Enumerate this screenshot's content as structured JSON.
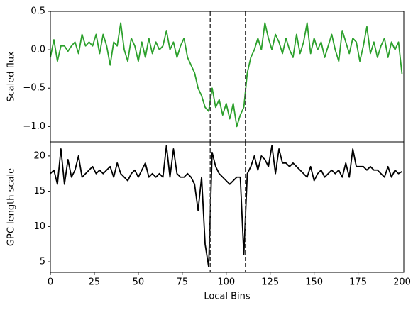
{
  "chart_data": [
    {
      "type": "line",
      "ylabel": "Scaled flux",
      "xlim": [
        0,
        201
      ],
      "ylim": [
        -1.2,
        0.5
      ],
      "yticks": [
        {
          "value": -1,
          "label": "−1.0"
        },
        {
          "value": -0.5,
          "label": "−0.5"
        },
        {
          "value": 0,
          "label": "0.0"
        },
        0.5
      ],
      "vlines": [
        91,
        111
      ],
      "vline_color": "#444444",
      "x": [
        0,
        2,
        4,
        6,
        8,
        10,
        12,
        14,
        16,
        18,
        20,
        22,
        24,
        26,
        28,
        30,
        32,
        34,
        36,
        38,
        40,
        42,
        44,
        46,
        48,
        50,
        52,
        54,
        56,
        58,
        60,
        62,
        64,
        66,
        68,
        70,
        72,
        74,
        76,
        78,
        80,
        82,
        84,
        86,
        88,
        90,
        92,
        94,
        96,
        98,
        100,
        102,
        104,
        106,
        108,
        110,
        112,
        114,
        116,
        118,
        120,
        122,
        124,
        126,
        128,
        130,
        132,
        134,
        136,
        138,
        140,
        142,
        144,
        146,
        148,
        150,
        152,
        154,
        156,
        158,
        160,
        162,
        164,
        166,
        168,
        170,
        172,
        174,
        176,
        178,
        180,
        182,
        184,
        186,
        188,
        190,
        192,
        194,
        196,
        198,
        200
      ],
      "series": [
        {
          "color": "#2ca02c",
          "values": [
            -0.1,
            0.13,
            -0.15,
            0.05,
            0.05,
            -0.02,
            0.05,
            0.1,
            -0.05,
            0.2,
            0.05,
            0.1,
            0.05,
            0.2,
            -0.05,
            0.2,
            0.05,
            -0.2,
            0.1,
            0.05,
            0.35,
            0.0,
            -0.15,
            0.15,
            0.05,
            -0.15,
            0.1,
            -0.1,
            0.15,
            -0.05,
            0.1,
            0.0,
            0.05,
            0.25,
            0.0,
            0.1,
            -0.1,
            0.05,
            0.15,
            -0.1,
            -0.2,
            -0.3,
            -0.5,
            -0.6,
            -0.75,
            -0.8,
            -0.5,
            -0.75,
            -0.65,
            -0.85,
            -0.7,
            -0.9,
            -0.7,
            -1.0,
            -0.85,
            -0.75,
            -0.3,
            -0.1,
            0.0,
            0.15,
            0.0,
            0.35,
            0.15,
            0.0,
            0.2,
            0.1,
            -0.05,
            0.15,
            0.0,
            -0.1,
            0.2,
            -0.05,
            0.1,
            0.35,
            -0.05,
            0.15,
            0.0,
            0.1,
            -0.1,
            0.05,
            0.2,
            0.0,
            -0.15,
            0.25,
            0.1,
            -0.05,
            0.15,
            0.1,
            -0.15,
            0.05,
            0.3,
            -0.05,
            0.1,
            -0.1,
            0.05,
            0.15,
            -0.1,
            0.1,
            0.0,
            0.1,
            -0.32
          ]
        }
      ]
    },
    {
      "type": "line",
      "ylabel": "GPC length scale",
      "xlabel": "Local Bins",
      "xlim": [
        0,
        201
      ],
      "ylim": [
        3.5,
        22
      ],
      "xticks": [
        0,
        25,
        50,
        75,
        100,
        125,
        150,
        175,
        200
      ],
      "yticks": [
        5,
        10,
        15,
        20
      ],
      "vlines": [
        91,
        111
      ],
      "vline_color": "#444444",
      "x": [
        0,
        2,
        4,
        6,
        8,
        10,
        12,
        14,
        16,
        18,
        20,
        22,
        24,
        26,
        28,
        30,
        32,
        34,
        36,
        38,
        40,
        42,
        44,
        46,
        48,
        50,
        52,
        54,
        56,
        58,
        60,
        62,
        64,
        66,
        68,
        70,
        72,
        74,
        76,
        78,
        80,
        82,
        84,
        86,
        88,
        90,
        92,
        94,
        96,
        98,
        100,
        102,
        104,
        106,
        108,
        110,
        112,
        114,
        116,
        118,
        120,
        122,
        124,
        126,
        128,
        130,
        132,
        134,
        136,
        138,
        140,
        142,
        144,
        146,
        148,
        150,
        152,
        154,
        156,
        158,
        160,
        162,
        164,
        166,
        168,
        170,
        172,
        174,
        176,
        178,
        180,
        182,
        184,
        186,
        188,
        190,
        192,
        194,
        196,
        198,
        200
      ],
      "series": [
        {
          "color": "#000000",
          "values": [
            17.5,
            18,
            16,
            21,
            16,
            19.5,
            17,
            18,
            20,
            17,
            17.5,
            18,
            18.5,
            17.5,
            18,
            17.5,
            18,
            18.5,
            17,
            19,
            17.5,
            17,
            16.5,
            17.5,
            18,
            17,
            18,
            19,
            17,
            17.5,
            17,
            17.5,
            17,
            21.5,
            17,
            21,
            17.5,
            17,
            17,
            17.5,
            17,
            16,
            12.3,
            17,
            7.5,
            4.3,
            20.5,
            18.5,
            17.5,
            17,
            16.5,
            16,
            16.5,
            17,
            17,
            6,
            17.5,
            18.5,
            20,
            18,
            20,
            19.5,
            18.5,
            21.5,
            17.5,
            21,
            19,
            19,
            18.5,
            19,
            18.5,
            18,
            17.5,
            17,
            18.5,
            16.5,
            17.5,
            18,
            17,
            17.5,
            18,
            17.5,
            18,
            17,
            19,
            17,
            21,
            18.5,
            18.5,
            18.5,
            18,
            18.5,
            18,
            18,
            17.5,
            17,
            18.5,
            17,
            18,
            17.5,
            17.8
          ]
        }
      ]
    }
  ]
}
